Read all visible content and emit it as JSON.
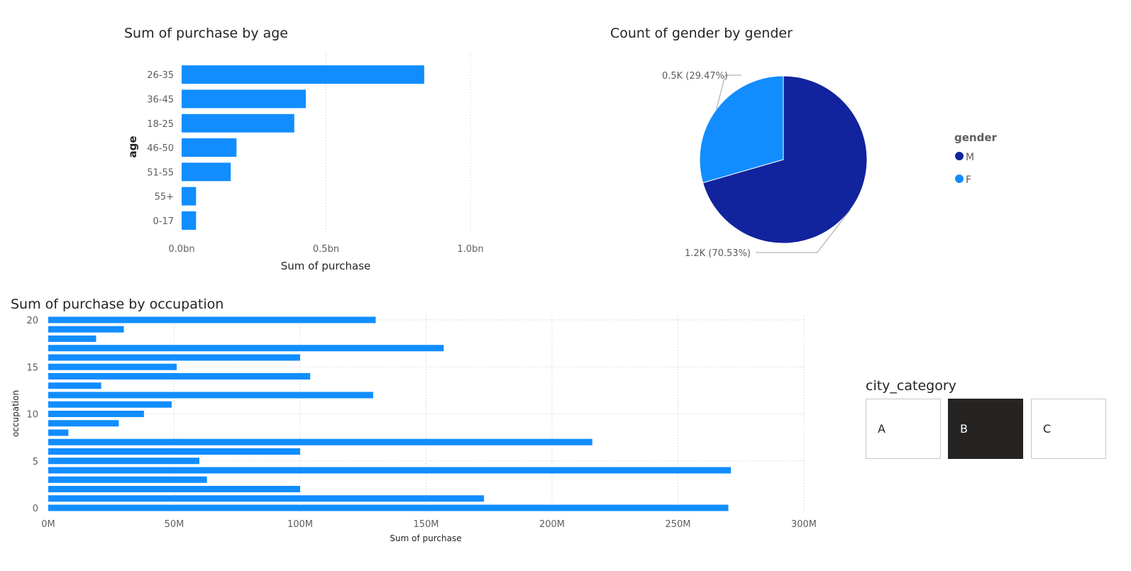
{
  "chart_data": [
    {
      "type": "bar",
      "orientation": "horizontal",
      "title": "Sum of purchase by age",
      "xlabel": "Sum of purchase",
      "ylabel": "age",
      "categories": [
        "26-35",
        "36-45",
        "18-25",
        "46-50",
        "51-55",
        "55+",
        "0-17"
      ],
      "values": [
        0.84,
        0.43,
        0.39,
        0.19,
        0.17,
        0.05,
        0.05
      ],
      "xlim": [
        0,
        1.0
      ],
      "xticks": [
        "0.0bn",
        "0.5bn",
        "1.0bn"
      ],
      "color": "#118dff",
      "grid": true
    },
    {
      "type": "pie",
      "title": "Count of gender by gender",
      "legend_title": "gender",
      "legend_position": "right",
      "slices": [
        {
          "label": "M",
          "value": 70.53,
          "data_label": "1.2K (70.53%)",
          "color": "#12239e"
        },
        {
          "label": "F",
          "value": 29.47,
          "data_label": "0.5K (29.47%)",
          "color": "#118dff"
        }
      ]
    },
    {
      "type": "bar",
      "orientation": "horizontal",
      "title": "Sum of purchase by occupation",
      "xlabel": "Sum of purchase",
      "ylabel": "occupation",
      "categories": [
        0,
        1,
        2,
        3,
        4,
        5,
        6,
        7,
        8,
        9,
        10,
        11,
        12,
        13,
        14,
        15,
        16,
        17,
        18,
        19,
        20
      ],
      "values": [
        270,
        173,
        100,
        63,
        271,
        60,
        100,
        216,
        8,
        28,
        38,
        49,
        129,
        21,
        104,
        51,
        100,
        157,
        19,
        30,
        130
      ],
      "xlim": [
        0,
        300
      ],
      "xticks": [
        "0M",
        "50M",
        "100M",
        "150M",
        "200M",
        "250M",
        "300M"
      ],
      "yticks": [
        "0",
        "5",
        "10",
        "15",
        "20"
      ],
      "color": "#118dff",
      "grid": true
    }
  ],
  "slicer": {
    "title": "city_category",
    "options": [
      "A",
      "B",
      "C"
    ],
    "selected": "B"
  }
}
